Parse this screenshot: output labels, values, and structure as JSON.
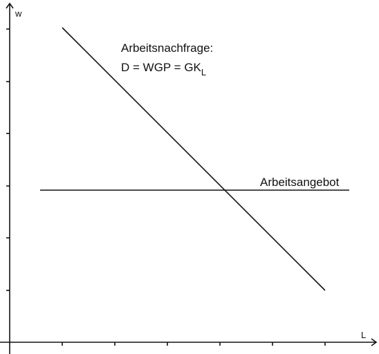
{
  "axes": {
    "y_label": "w",
    "x_label": "L"
  },
  "demand": {
    "label_line1": "Arbeitsnachfrage:",
    "label_line2": "D = WGP = GK",
    "label_subscript": "L"
  },
  "supply": {
    "label": "Arbeitsangebot"
  }
}
